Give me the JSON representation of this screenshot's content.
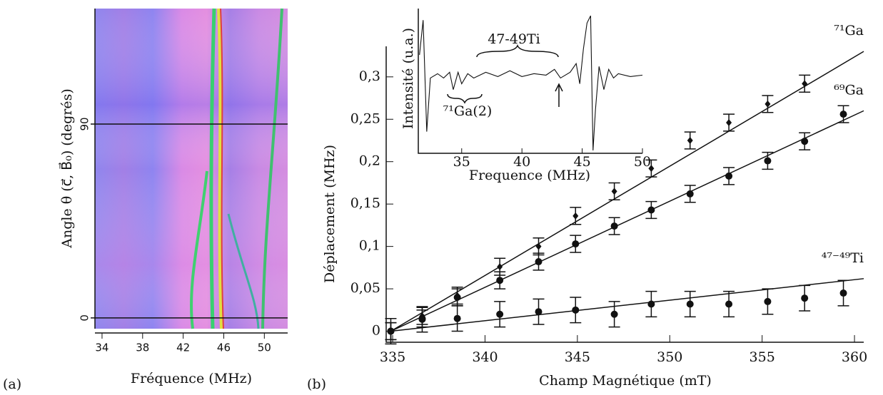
{
  "chart_data": [
    {
      "type": "heatmap",
      "panel": "(a)",
      "xlabel": "Fréquence (MHz)",
      "ylabel": "Angle θ (c⃗, B⃗₀) (degrés)",
      "xlim": [
        33.3,
        52.3
      ],
      "xticks": [
        34,
        38,
        42,
        46,
        50
      ],
      "ylim": [
        -5,
        143.6
      ],
      "yticks": [
        0,
        90
      ]
    },
    {
      "type": "scatter",
      "panel": "(b)",
      "xlabel": "Champ Magnétique (mT)",
      "ylabel": "Déplacement (MHz)",
      "xlim": [
        334.65,
        360.5
      ],
      "xticks": [
        335,
        340,
        345,
        350,
        355,
        360
      ],
      "ylim": [
        -0.013,
        0.336
      ],
      "yticks": [
        0,
        {
          "value": 0.05,
          "label": "0,05"
        },
        {
          "value": 0.1,
          "label": "0,1"
        },
        {
          "value": 0.15,
          "label": "0,15"
        },
        {
          "value": 0.2,
          "label": "0,2"
        },
        {
          "value": 0.25,
          "label": "0,25"
        },
        {
          "value": 0.3,
          "label": "0,3"
        }
      ],
      "series": [
        {
          "name": "⁷¹Ga",
          "marker": "diamond",
          "color": "#111",
          "x": [
            334.9,
            336.6,
            338.5,
            340.8,
            342.9,
            344.9,
            347,
            349,
            351.1,
            353.2,
            355.3,
            357.3
          ],
          "values": [
            0,
            0.018,
            0.042,
            0.076,
            0.1,
            0.136,
            0.165,
            0.192,
            0.225,
            0.246,
            0.268,
            0.292
          ],
          "errors": [
            0.01,
            0.01,
            0.01,
            0.01,
            0.01,
            0.01,
            0.01,
            0.01,
            0.01,
            0.01,
            0.01,
            0.01
          ],
          "fit": {
            "x": [
              334.9,
              360.5
            ],
            "values": [
              0,
              0.33
            ]
          }
        },
        {
          "name": "⁶⁹Ga",
          "marker": "circle",
          "color": "#111",
          "x": [
            334.9,
            336.6,
            338.5,
            340.8,
            342.9,
            344.9,
            347,
            349,
            351.1,
            353.2,
            355.3,
            357.3,
            359.4
          ],
          "values": [
            0,
            0.015,
            0.04,
            0.06,
            0.082,
            0.103,
            0.124,
            0.143,
            0.162,
            0.183,
            0.201,
            0.224,
            0.256
          ],
          "errors": [
            0.01,
            0.01,
            0.01,
            0.01,
            0.01,
            0.01,
            0.01,
            0.01,
            0.01,
            0.01,
            0.01,
            0.01,
            0.01
          ],
          "fit": {
            "x": [
              334.9,
              360.5
            ],
            "values": [
              0,
              0.26
            ]
          }
        },
        {
          "name": "⁴⁷⁻⁴⁹Ti",
          "marker": "circle",
          "color": "#111",
          "x": [
            334.9,
            336.6,
            338.5,
            340.8,
            342.9,
            344.9,
            347,
            349,
            351.1,
            353.2,
            355.3,
            357.3,
            359.4
          ],
          "values": [
            0,
            0.014,
            0.015,
            0.02,
            0.023,
            0.025,
            0.02,
            0.032,
            0.032,
            0.032,
            0.035,
            0.039,
            0.045
          ],
          "errors": [
            0.015,
            0.015,
            0.015,
            0.015,
            0.015,
            0.015,
            0.015,
            0.015,
            0.015,
            0.015,
            0.015,
            0.015,
            0.015
          ],
          "fit": {
            "x": [
              334.9,
              360.5
            ],
            "values": [
              0,
              0.062
            ]
          }
        }
      ]
    },
    {
      "type": "line",
      "xlabel": "Frequence (MHz)",
      "ylabel": "Intensité (u.a.)",
      "xlim": [
        31.4,
        50
      ],
      "xticks": [
        35,
        40,
        45,
        50
      ],
      "ylim": [
        0,
        1
      ],
      "annotations": [
        "47-49Ti",
        "⁷¹Ga(2)"
      ],
      "x": [
        31.5,
        31.8,
        32.1,
        32.4,
        33,
        33.5,
        34,
        34.3,
        34.7,
        35,
        35.5,
        36,
        37,
        38,
        39,
        40,
        41,
        42,
        42.7,
        43.2,
        44,
        44.5,
        44.8,
        45.1,
        45.4,
        45.7,
        45.9,
        46.1,
        46.4,
        46.8,
        47.2,
        47.6,
        48,
        49,
        50
      ],
      "values": [
        0.68,
        0.92,
        0.15,
        0.52,
        0.55,
        0.52,
        0.56,
        0.44,
        0.56,
        0.48,
        0.55,
        0.52,
        0.56,
        0.53,
        0.57,
        0.53,
        0.55,
        0.54,
        0.58,
        0.52,
        0.56,
        0.62,
        0.48,
        0.72,
        0.9,
        0.95,
        0.02,
        0.3,
        0.6,
        0.44,
        0.58,
        0.52,
        0.55,
        0.53,
        0.54
      ]
    }
  ]
}
